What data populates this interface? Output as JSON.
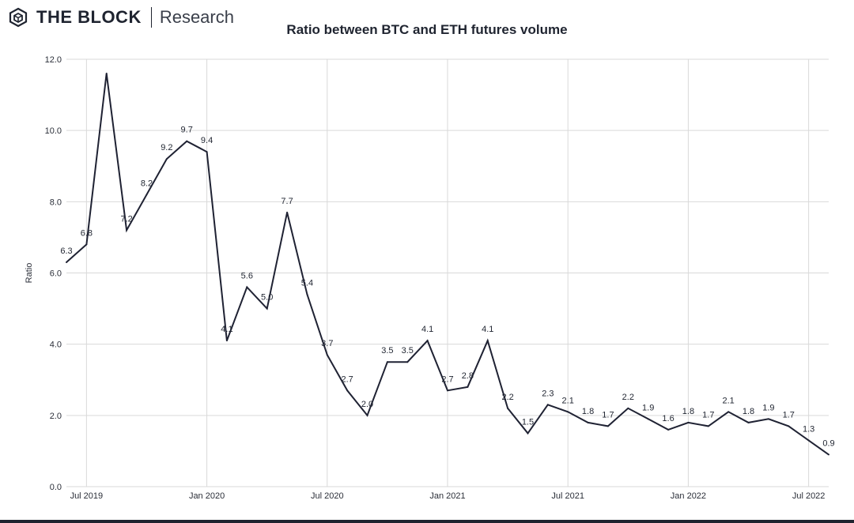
{
  "header": {
    "brand_name": "THE BLOCK",
    "brand_sub": "Research",
    "logo_icon": "cube-logo-icon"
  },
  "chart_data": {
    "type": "line",
    "title": "Ratio between BTC and ETH futures volume",
    "xlabel": "",
    "ylabel": "Ratio",
    "ylim": [
      0,
      12
    ],
    "yticks": [
      "0.0",
      "2.0",
      "4.0",
      "6.0",
      "8.0",
      "10.0",
      "12.0"
    ],
    "xticks": [
      "Jul 2019",
      "Jan 2020",
      "Jul 2020",
      "Jan 2021",
      "Jul 2021",
      "Jan 2022",
      "Jul 2022"
    ],
    "grid": true,
    "line_color": "#1f2233",
    "x": [
      "2019-06",
      "2019-07",
      "2019-08",
      "2019-09",
      "2019-10",
      "2019-11",
      "2019-12",
      "2020-01",
      "2020-02",
      "2020-03",
      "2020-04",
      "2020-05",
      "2020-06",
      "2020-07",
      "2020-08",
      "2020-09",
      "2020-10",
      "2020-11",
      "2020-12",
      "2021-01",
      "2021-02",
      "2021-03",
      "2021-04",
      "2021-05",
      "2021-06",
      "2021-07",
      "2021-08",
      "2021-09",
      "2021-10",
      "2021-11",
      "2021-12",
      "2022-01",
      "2022-02",
      "2022-03",
      "2022-04",
      "2022-05",
      "2022-06",
      "2022-07",
      "2022-08"
    ],
    "values": [
      6.3,
      6.8,
      11.6,
      7.2,
      8.2,
      9.2,
      9.7,
      9.4,
      4.1,
      5.6,
      5.0,
      7.7,
      5.4,
      3.7,
      2.7,
      2.0,
      3.5,
      3.5,
      4.1,
      2.7,
      2.8,
      4.1,
      2.2,
      1.5,
      2.3,
      2.1,
      1.8,
      1.7,
      2.2,
      1.9,
      1.6,
      1.8,
      1.7,
      2.1,
      1.8,
      1.9,
      1.7,
      1.3,
      0.9
    ],
    "data_labels": [
      "6.3",
      "6.8",
      "",
      "7.2",
      "8.2",
      "9.2",
      "9.7",
      "9.4",
      "4.1",
      "5.6",
      "5.0",
      "7.7",
      "5.4",
      "3.7",
      "2.7",
      "2.0",
      "3.5",
      "3.5",
      "4.1",
      "2.7",
      "2.8",
      "4.1",
      "2.2",
      "1.5",
      "2.3",
      "2.1",
      "1.8",
      "1.7",
      "2.2",
      "1.9",
      "1.6",
      "1.8",
      "1.7",
      "2.1",
      "1.8",
      "1.9",
      "1.7",
      "1.3",
      "0.9"
    ]
  }
}
